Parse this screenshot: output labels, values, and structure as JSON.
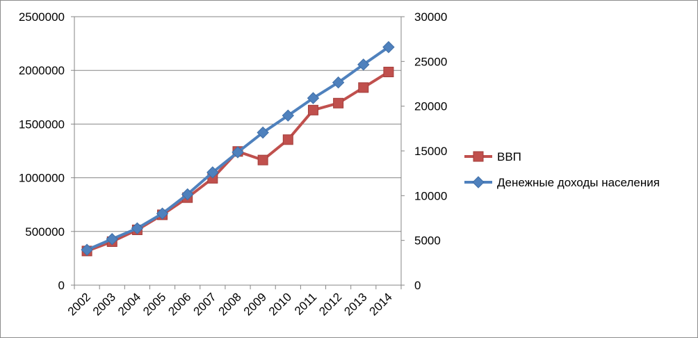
{
  "chart_data": {
    "type": "line",
    "categories": [
      "2002",
      "2003",
      "2004",
      "2005",
      "2006",
      "2007",
      "2008",
      "2009",
      "2010",
      "2011",
      "2012",
      "2013",
      "2014"
    ],
    "series": [
      {
        "name": "ВВП",
        "axis": "left",
        "color": "#c0504d",
        "marker": "square",
        "values": [
          318000,
          405000,
          515000,
          655000,
          815000,
          995000,
          1245000,
          1165000,
          1355000,
          1630000,
          1695000,
          1840000,
          1985000
        ]
      },
      {
        "name": "Денежные доходы населения",
        "axis": "right",
        "color": "#4f81bd",
        "marker": "diamond",
        "values": [
          3950,
          5150,
          6350,
          8000,
          10150,
          12600,
          14850,
          17050,
          18950,
          20900,
          22650,
          24650,
          26600
        ]
      }
    ],
    "y_left": {
      "min": 0,
      "max": 2500000,
      "ticks": [
        "0",
        "500000",
        "1000000",
        "1500000",
        "2000000",
        "2500000"
      ]
    },
    "y_right": {
      "min": 0,
      "max": 30000,
      "ticks": [
        "0",
        "5000",
        "10000",
        "15000",
        "20000",
        "25000",
        "30000"
      ]
    },
    "grid": true,
    "legend_position": "right",
    "title": "",
    "xlabel": "",
    "ylabel": ""
  }
}
